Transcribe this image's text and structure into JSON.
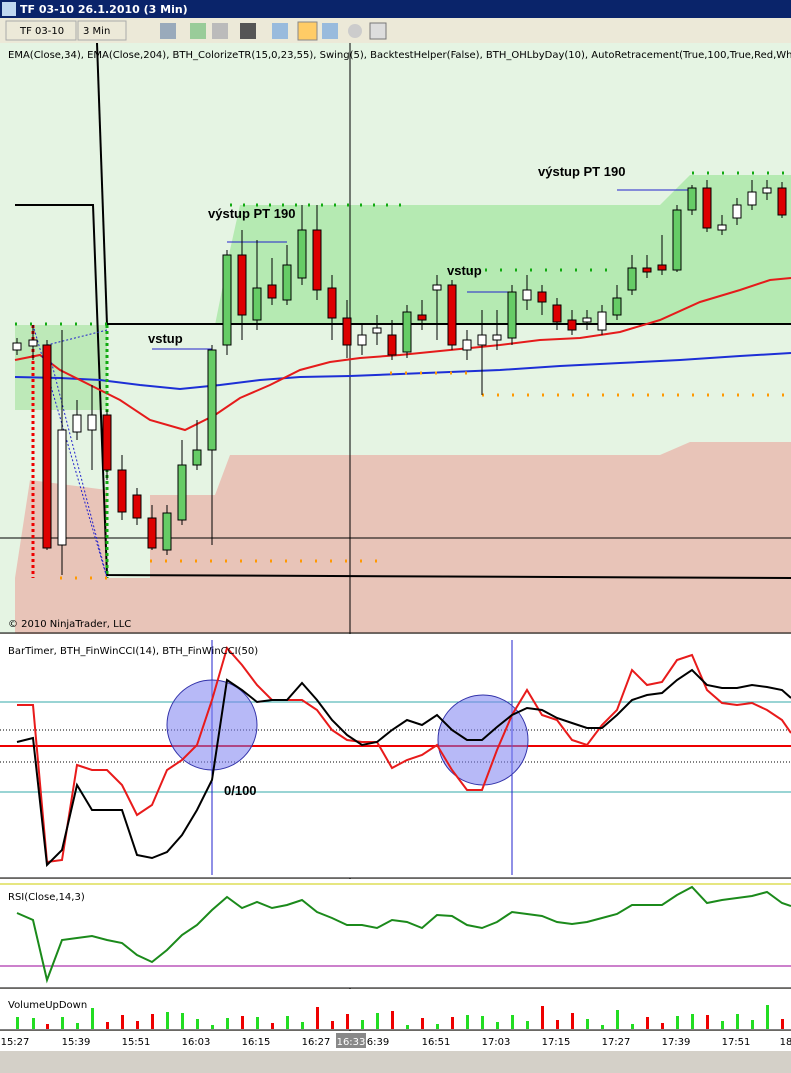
{
  "window": {
    "title": "TF 03-10  26.1.2010 (3 Min)"
  },
  "toolbar": {
    "instrument": "TF 03-10",
    "period": "3 Min"
  },
  "main_panel": {
    "indicators": "EMA(Close,34),  EMA(Close,204),  BTH_ColorizeTR(15,0,23,55),  Swing(5),  BacktestHelper(False),  BTH_OHLbyDay(10),  AutoRetracement(True,100,True,Red,Wh",
    "annotations": [
      "výstup PT 190",
      "výstup PT 190",
      "vstup",
      "vstup"
    ],
    "copyright": "© 2010 NinjaTrader, LLC"
  },
  "cci_panel": {
    "label": "BarTimer,  BTH_FinWinCCI(14),  BTH_FinWinCCI(50)",
    "annotation": "0/100"
  },
  "rsi_panel": {
    "label": "RSI(Close,14,3)"
  },
  "volume_panel": {
    "label": "VolumeUpDown"
  },
  "time_axis": {
    "labels": [
      "15:27",
      "15:39",
      "15:51",
      "16:03",
      "16:15",
      "16:27",
      "16:33",
      "6:39",
      "16:51",
      "17:03",
      "17:15",
      "17:27",
      "17:39",
      "17:51",
      "18"
    ]
  }
}
